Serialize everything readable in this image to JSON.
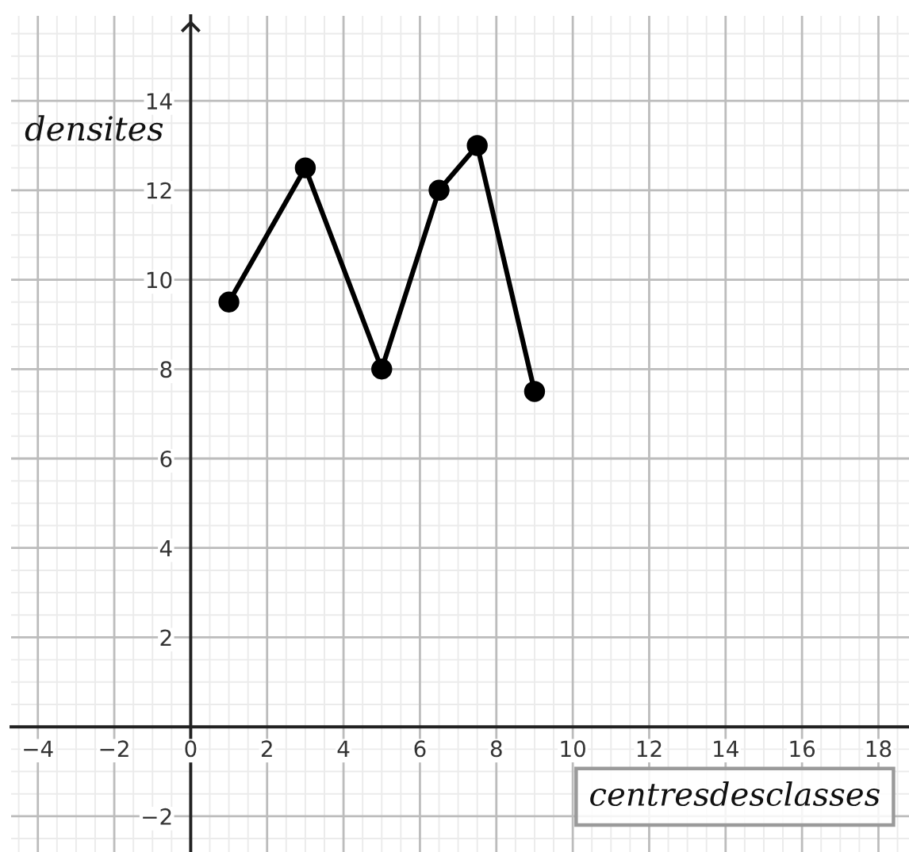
{
  "chart_data": {
    "type": "line",
    "x": [
      1,
      3,
      5,
      6.5,
      7.5,
      9
    ],
    "values": [
      9.5,
      12.5,
      8,
      12,
      13,
      7.5
    ],
    "color": "#000000",
    "marker": "circle",
    "line_style": "solid",
    "xlabel": "centresdesclasses",
    "ylabel": "densites",
    "xlim": [
      -4.7,
      18.8
    ],
    "ylim": [
      -2.8,
      15.9
    ],
    "xticks": [
      {
        "value": -4,
        "label": "−4"
      },
      {
        "value": -2,
        "label": "−2"
      },
      0,
      2,
      4,
      6,
      8,
      10,
      12,
      14,
      16,
      18
    ],
    "yticks": [
      {
        "value": -2,
        "label": "−2"
      },
      2,
      4,
      6,
      8,
      10,
      12,
      14
    ],
    "grid": true
  }
}
